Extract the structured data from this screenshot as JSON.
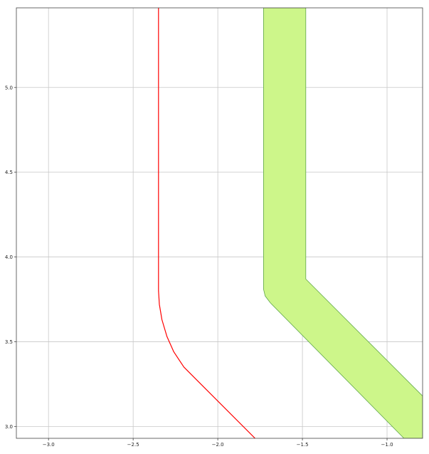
{
  "chart_data": {
    "type": "line",
    "title": "",
    "xlabel": "",
    "ylabel": "",
    "xlim": [
      -3.19,
      -0.79
    ],
    "ylim": [
      2.93,
      5.47
    ],
    "grid": true,
    "x_ticks": [
      {
        "value": -3.0,
        "label": "−3.0"
      },
      {
        "value": -2.5,
        "label": "−2.5"
      },
      {
        "value": -2.0,
        "label": "−2.0"
      },
      {
        "value": -1.5,
        "label": "−1.5"
      },
      {
        "value": -1.0,
        "label": "−1.0"
      }
    ],
    "y_ticks": [
      {
        "value": 3.0,
        "label": "3.0"
      },
      {
        "value": 3.5,
        "label": "3.5"
      },
      {
        "value": 4.0,
        "label": "4.0"
      },
      {
        "value": 4.5,
        "label": "4.5"
      },
      {
        "value": 5.0,
        "label": "5.0"
      }
    ],
    "colors": {
      "line": "#ff0000",
      "fill": "#cdf68a",
      "fill_edge": "#5fa64a",
      "grid": "#c8c8c8",
      "frame": "#444444"
    },
    "series": [
      {
        "kind": "line",
        "points": [
          [
            -2.35,
            5.47
          ],
          [
            -2.35,
            3.8
          ],
          [
            -2.345,
            3.72
          ],
          [
            -2.33,
            3.63
          ],
          [
            -2.3,
            3.53
          ],
          [
            -2.26,
            3.44
          ],
          [
            -2.2,
            3.35
          ],
          [
            -2.13,
            3.28
          ],
          [
            -1.78,
            2.93
          ]
        ]
      },
      {
        "kind": "filled_band",
        "points": [
          [
            -1.73,
            5.47
          ],
          [
            -1.48,
            5.47
          ],
          [
            -1.48,
            3.87
          ],
          [
            -0.79,
            3.18
          ],
          [
            -0.79,
            2.93
          ],
          [
            -0.9,
            2.93
          ],
          [
            -1.69,
            3.73
          ],
          [
            -1.72,
            3.77
          ],
          [
            -1.73,
            3.81
          ]
        ]
      }
    ]
  }
}
